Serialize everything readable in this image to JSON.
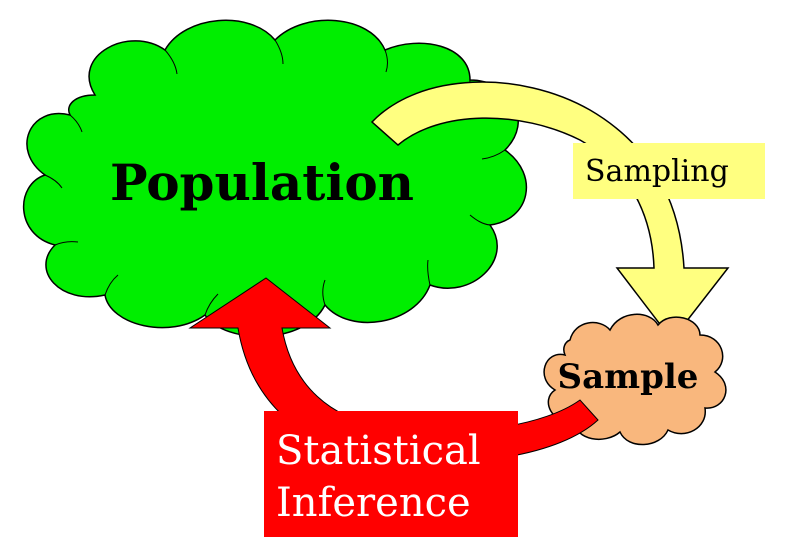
{
  "diagram": {
    "nodes": {
      "population": {
        "label": "Population"
      },
      "sample": {
        "label": "Sample"
      }
    },
    "arrows": {
      "sampling": {
        "label": "Sampling"
      },
      "inference": {
        "line1": "Statistical",
        "line2": "Inference"
      }
    },
    "colors": {
      "population_fill": "#00ee00",
      "sample_fill": "#f9b77d",
      "sampling_arrow": "#ffff80",
      "sampling_label_bg": "#ffff80",
      "inference_arrow": "#ff0000",
      "inference_label_bg": "#ff0000",
      "outline": "#000000"
    }
  }
}
